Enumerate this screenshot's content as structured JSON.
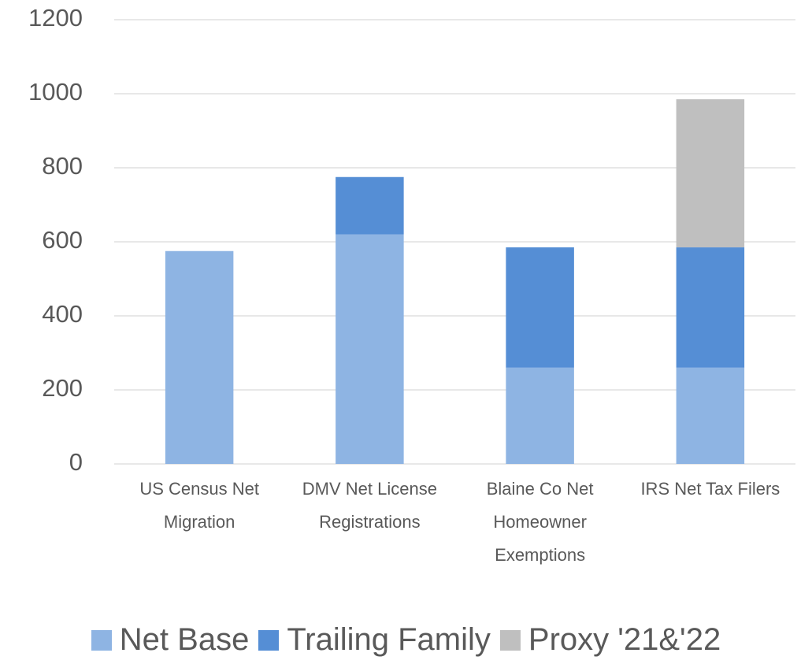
{
  "chart_data": {
    "type": "stacked_bar",
    "categories": [
      "US Census Net Migration",
      "DMV Net License Registrations",
      "Blaine Co Net Homeowner Exemptions",
      "IRS Net Tax Filers"
    ],
    "series": [
      {
        "name": "Net Base",
        "color": "#8eb4e3",
        "values": [
          575,
          620,
          260,
          260
        ]
      },
      {
        "name": "Trailing Family",
        "color": "#558ed5",
        "values": [
          0,
          155,
          325,
          325
        ]
      },
      {
        "name": "Proxy '21&'22",
        "color": "#bfbfbf",
        "values": [
          0,
          0,
          0,
          400
        ]
      }
    ],
    "ylim": [
      0,
      1200
    ],
    "yticks": [
      0,
      200,
      400,
      600,
      800,
      1000,
      1200
    ],
    "grid": true,
    "legend": "bottom"
  }
}
